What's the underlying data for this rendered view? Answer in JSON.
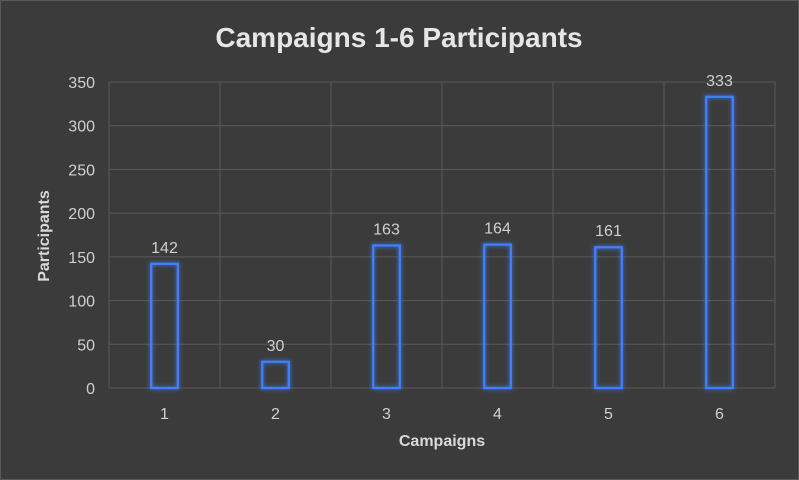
{
  "chart_data": {
    "type": "bar",
    "title": "Campaigns 1-6 Participants",
    "xlabel": "Campaigns",
    "ylabel": "Participants",
    "categories": [
      "1",
      "2",
      "3",
      "4",
      "5",
      "6"
    ],
    "series": [
      {
        "values": [
          142,
          30,
          163,
          164,
          161,
          333
        ]
      }
    ],
    "ylim": [
      0,
      350
    ],
    "yticks": [
      0,
      50,
      100,
      150,
      200,
      250,
      300,
      350
    ],
    "grid": true,
    "legend": "none",
    "colors": {
      "background": "#3b3b3b",
      "bar_stroke": "#3f7fff",
      "bar_glow": "#2f6cff",
      "gridline": "#5a5a5a",
      "text": "#d9d9d9"
    }
  }
}
